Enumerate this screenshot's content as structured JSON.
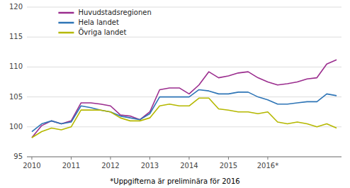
{
  "chart_data": {
    "type": "line",
    "categories": [
      "2010",
      null,
      null,
      null,
      "2011",
      null,
      null,
      null,
      "2012",
      null,
      null,
      null,
      "2013",
      null,
      null,
      null,
      "2014",
      null,
      null,
      null,
      "2015",
      null,
      null,
      null,
      "2016*",
      null,
      null,
      null,
      null,
      null,
      null,
      null
    ],
    "series": [
      {
        "name": "Huvudstadsregionen",
        "color": "#9b2d8e",
        "values": [
          98.2,
          100.2,
          101.0,
          100.5,
          101.0,
          104.0,
          104.0,
          103.8,
          103.5,
          102.0,
          101.8,
          101.2,
          102.5,
          106.2,
          106.5,
          106.5,
          105.5,
          107.0,
          109.2,
          108.2,
          108.5,
          109.0,
          109.2,
          108.2,
          107.5,
          107.0,
          107.2,
          107.5,
          108.0,
          108.2,
          110.5,
          111.2
        ]
      },
      {
        "name": "Hela landet",
        "color": "#2e75b6",
        "values": [
          99.2,
          100.5,
          101.0,
          100.5,
          100.8,
          103.5,
          103.2,
          102.8,
          102.5,
          101.8,
          101.5,
          101.2,
          102.2,
          105.0,
          105.0,
          105.0,
          105.0,
          106.2,
          106.0,
          105.5,
          105.5,
          105.8,
          105.8,
          105.0,
          104.5,
          103.8,
          103.8,
          104.0,
          104.2,
          104.2,
          105.5,
          105.2
        ]
      },
      {
        "name": "Övriga landet",
        "color": "#b5b800",
        "values": [
          98.2,
          99.2,
          99.8,
          99.5,
          100.0,
          102.8,
          102.8,
          102.8,
          102.5,
          101.5,
          101.0,
          101.0,
          101.5,
          103.5,
          103.8,
          103.5,
          103.5,
          104.8,
          104.8,
          103.0,
          102.8,
          102.5,
          102.5,
          102.2,
          102.5,
          100.8,
          100.5,
          100.8,
          100.5,
          100.0,
          100.5,
          99.8
        ]
      }
    ],
    "ylim": [
      95,
      120
    ],
    "yticks": [
      95,
      100,
      105,
      110,
      115,
      120
    ],
    "grid": true,
    "legend": "top-left",
    "annotations": [
      "*Uppgifterna är preliminära för 2016"
    ]
  }
}
